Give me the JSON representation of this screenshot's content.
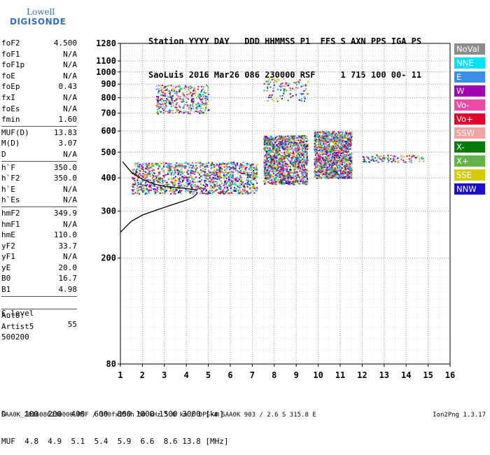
{
  "logo": {
    "line1": "Lowell",
    "line2": "DIGISONDE"
  },
  "header": {
    "line1": "Station YYYY DAY   DDD HHMMSS P1  FFS S AXN PPS IGA PS",
    "line2": "SaoLuis 2016 Mar26 086 230000 RSF     1 715 100 00- 11"
  },
  "params": [
    {
      "n": "foF2",
      "v": "4.500"
    },
    {
      "n": "foF1",
      "v": "N/A"
    },
    {
      "n": "foF1p",
      "v": "N/A"
    },
    {
      "n": "foE",
      "v": "N/A"
    },
    {
      "n": "foEp",
      "v": "0.43"
    },
    {
      "n": "fxI",
      "v": "N/A"
    },
    {
      "n": "foEs",
      "v": "N/A"
    },
    {
      "n": "fmin",
      "v": "1.60"
    }
  ],
  "params2": [
    {
      "n": "MUF(D)",
      "v": "13.83"
    },
    {
      "n": "M(D)",
      "v": "3.07"
    },
    {
      "n": "D",
      "v": "N/A"
    }
  ],
  "params3": [
    {
      "n": "h`F",
      "v": "350.0"
    },
    {
      "n": "h`F2",
      "v": "350.0"
    },
    {
      "n": "h`E",
      "v": "N/A"
    },
    {
      "n": "h`Es",
      "v": "N/A"
    }
  ],
  "params4": [
    {
      "n": "hmF2",
      "v": "349.9"
    },
    {
      "n": "hmF1",
      "v": "N/A"
    },
    {
      "n": "hmE",
      "v": "110.0"
    },
    {
      "n": "yF2",
      "v": "33.7"
    },
    {
      "n": "yF1",
      "v": "N/A"
    },
    {
      "n": "yE",
      "v": "20.0"
    },
    {
      "n": "B0",
      "v": "16.7"
    },
    {
      "n": "B1",
      "v": "4.98"
    }
  ],
  "clevel": {
    "n": "C-level",
    "v": "55"
  },
  "auto": [
    "Auto:",
    "Artist5",
    "500200"
  ],
  "legend": [
    {
      "label": "NoVal",
      "color": "#8c8c8c"
    },
    {
      "label": "NNE",
      "color": "#00e0ff"
    },
    {
      "label": "E",
      "color": "#3b8fe8"
    },
    {
      "label": "W",
      "color": "#a000b0"
    },
    {
      "label": "Vo-",
      "color": "#f04aa8"
    },
    {
      "label": "Vo+",
      "color": "#e0002a"
    },
    {
      "label": "SSW",
      "color": "#f4a2a2"
    },
    {
      "label": "X-",
      "color": "#0a7a0a"
    },
    {
      "label": "X+",
      "color": "#66b24a"
    },
    {
      "label": "SSE",
      "color": "#d4cc00"
    },
    {
      "label": "NNW",
      "color": "#1a10c8"
    }
  ],
  "bottom": {
    "line1": "D    100  200  400  600  800 1000 1500 3000 [km]",
    "line2": "MUF  4.8  4.9  5.1  5.4  5.9  6.6  8.6 13.8 [MHz]"
  },
  "footer": {
    "left": "SAA0K_2016086230000.RSF / 300fx256h 50 kHz 5.0 km / DPS-4 SAA0K 903 / 2.6 S 315.8 E",
    "right": "Ion2Png 1.3.17"
  },
  "chart_data": {
    "type": "scatter",
    "xlabel": "",
    "ylabel": "",
    "xlim": [
      1,
      16
    ],
    "x_ticks": [
      1,
      2,
      3,
      4,
      5,
      6,
      7,
      8,
      9,
      10,
      11,
      12,
      13,
      14,
      15,
      16
    ],
    "y_ticks": [
      80,
      200,
      300,
      400,
      500,
      600,
      700,
      800,
      900,
      1000,
      1100,
      1280
    ],
    "y_tick_labels": [
      "80",
      "200",
      "300",
      "400",
      "500",
      "600",
      "700",
      "800",
      "900",
      "1000",
      "1100",
      "1280"
    ],
    "y_scale": "logarithmic",
    "ylim": [
      80,
      1280
    ],
    "grid": true,
    "traces": [
      {
        "name": "",
        "freq_MHz": [
          1.0,
          1.5,
          2.0,
          2.5,
          3.0,
          3.5,
          4.0,
          4.3,
          4.5
        ],
        "virtual_height_km": [
          250,
          275,
          290,
          300,
          310,
          320,
          330,
          338,
          350
        ]
      },
      {
        "name": "",
        "freq_MHz": [
          1.1,
          1.5,
          2.0,
          2.5,
          3.0,
          3.5,
          4.0,
          4.5
        ],
        "virtual_height_km": [
          460,
          420,
          395,
          380,
          372,
          368,
          365,
          360
        ]
      }
    ],
    "echo_regions": [
      {
        "f_range": [
          1.5,
          7.2
        ],
        "h_range": [
          350,
          460
        ],
        "density": "high"
      },
      {
        "f_range": [
          2.6,
          5.0
        ],
        "h_range": [
          700,
          900
        ],
        "density": "medium"
      },
      {
        "f_range": [
          7.5,
          9.5
        ],
        "h_range": [
          380,
          580
        ],
        "density": "high"
      },
      {
        "f_range": [
          7.5,
          9.5
        ],
        "h_range": [
          780,
          950
        ],
        "density": "low"
      },
      {
        "f_range": [
          9.8,
          11.5
        ],
        "h_range": [
          400,
          600
        ],
        "density": "high"
      },
      {
        "f_range": [
          12.0,
          14.8
        ],
        "h_range": [
          460,
          490
        ],
        "density": "low"
      }
    ]
  }
}
